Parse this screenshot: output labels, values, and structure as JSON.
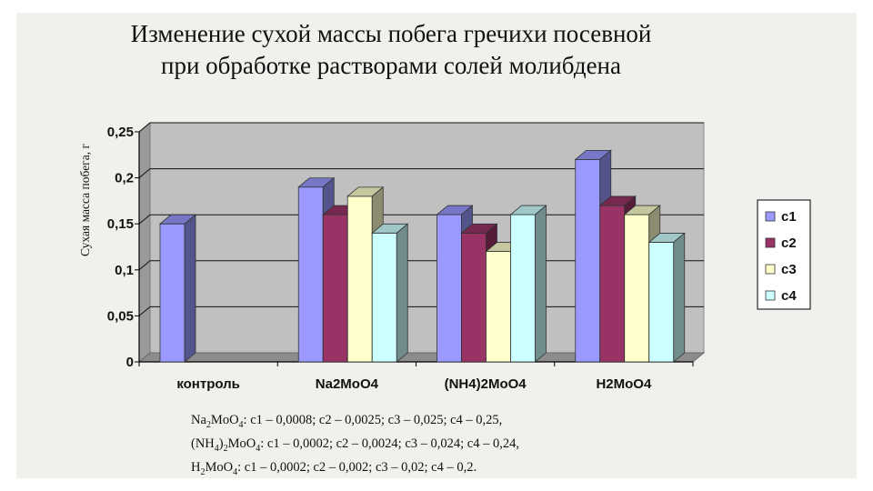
{
  "title_line1": "Изменение сухой массы побега гречихи посевной",
  "title_line2": "при обработке растворами солей молибдена",
  "chart_data": {
    "type": "bar",
    "title": "Изменение сухой массы побега гречихи посевной при обработке растворами солей молибдена",
    "ylabel": "Сухая масса побега, г",
    "xlabel": "",
    "ylim": [
      0,
      0.25
    ],
    "yticks": [
      "0",
      "0,05",
      "0,1",
      "0,15",
      "0,2",
      "0,25"
    ],
    "categories": [
      "контроль",
      "Na2MoO4",
      "(NH4)2MoO4",
      "H2MoO4"
    ],
    "series": [
      {
        "name": "c1",
        "values": [
          0.15,
          0.19,
          0.16,
          0.22
        ],
        "color": "#9999ff"
      },
      {
        "name": "c2",
        "values": [
          null,
          0.16,
          0.14,
          0.17
        ],
        "color": "#993366"
      },
      {
        "name": "c3",
        "values": [
          null,
          0.18,
          0.12,
          0.16
        ],
        "color": "#ffffcc"
      },
      {
        "name": "c4",
        "values": [
          null,
          0.14,
          0.16,
          0.13
        ],
        "color": "#ccffff"
      }
    ],
    "grid": true,
    "legend": "right",
    "style": "3d-clustered-bar"
  },
  "notes": [
    {
      "formula": [
        [
          "Na"
        ],
        [
          "2",
          "sub"
        ],
        [
          "MoO"
        ],
        [
          "4",
          "sub"
        ]
      ],
      "text": ": c1 – 0,0008; c2 – 0,0025; c3 – 0,025; c4 – 0,25,"
    },
    {
      "formula": [
        [
          "(NH"
        ],
        [
          "4",
          "sub"
        ],
        [
          ")"
        ],
        [
          "2",
          "sub"
        ],
        [
          "MoO"
        ],
        [
          "4",
          "sub"
        ]
      ],
      "text": ":  c1 – 0,0002; c2 – 0,0024; c3 – 0,024; c4 – 0,24,"
    },
    {
      "formula": [
        [
          "H"
        ],
        [
          "2",
          "sub"
        ],
        [
          "MoO"
        ],
        [
          "4",
          "sub"
        ]
      ],
      "text": ":  c1 – 0,0002; c2 – 0,002; c3 – 0,02; c4 – 0,2."
    }
  ]
}
